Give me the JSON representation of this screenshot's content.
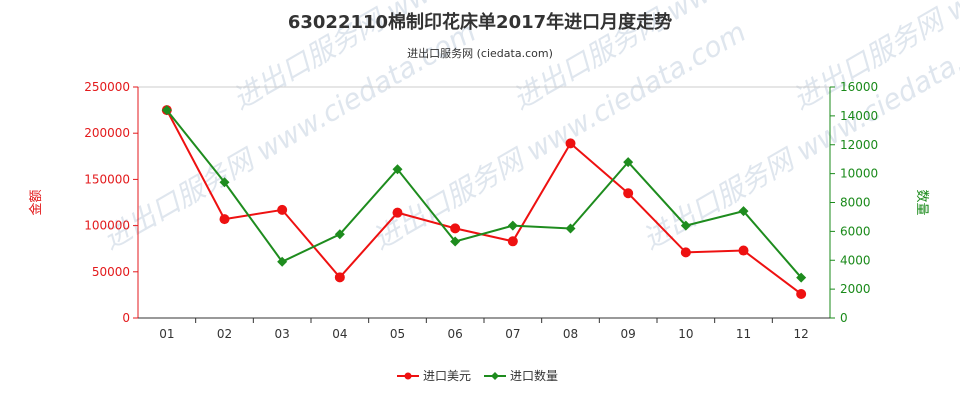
{
  "chart_data": {
    "type": "line",
    "title": "63022110棉制印花床单2017年进口月度走势",
    "subtitle": "进出口服务网 (ciedata.com)",
    "categories": [
      "01",
      "02",
      "03",
      "04",
      "05",
      "06",
      "07",
      "08",
      "09",
      "10",
      "11",
      "12"
    ],
    "y_left": {
      "label": "金额",
      "range": [
        0,
        250000
      ],
      "ticks": [
        "0",
        "50000",
        "100000",
        "150000",
        "200000",
        "250000"
      ],
      "color": "#e31a1c"
    },
    "y_right": {
      "label": "数量",
      "range": [
        0,
        16000
      ],
      "ticks": [
        "0",
        "2000",
        "4000",
        "6000",
        "8000",
        "10000",
        "12000",
        "14000",
        "16000"
      ],
      "color": "#1a8a1a"
    },
    "series": [
      {
        "name": "进口美元",
        "axis": "left",
        "color": "#ee1111",
        "values": [
          225000,
          107000,
          117000,
          44000,
          114000,
          97000,
          83000,
          189000,
          135000,
          71000,
          73000,
          26000
        ]
      },
      {
        "name": "进口数量",
        "axis": "right",
        "color": "#1e8c1e",
        "values": [
          14400,
          9400,
          3900,
          5800,
          10300,
          5300,
          6400,
          6200,
          10800,
          6400,
          7400,
          2800
        ]
      }
    ],
    "legend_position": "bottom-center",
    "grid": false,
    "watermark": "进出口服务网 www.ciedata.com"
  }
}
